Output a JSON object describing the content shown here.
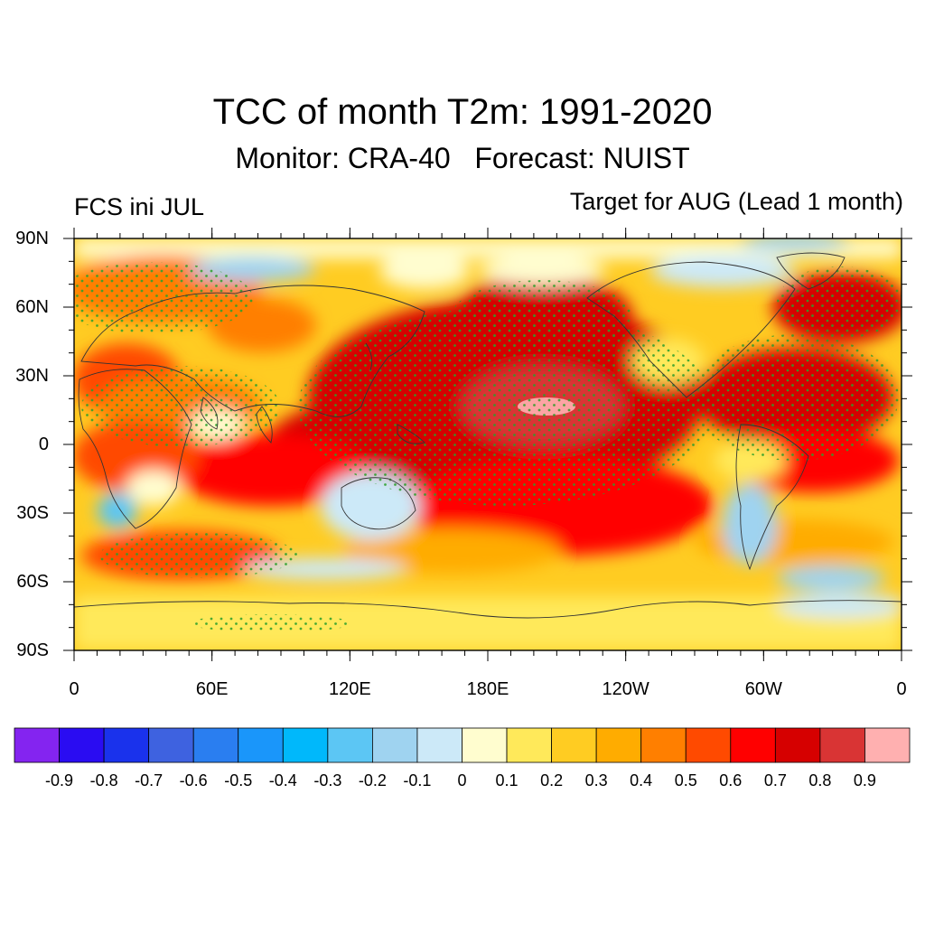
{
  "title": "TCC of month T2m: 1991-2020",
  "subtitle": "Monitor: CRA-40   Forecast: NUIST",
  "left_label": "FCS ini JUL",
  "right_label": "Target for AUG (Lead 1 month)",
  "lat_ticks": [
    "90N",
    "60N",
    "30N",
    "0",
    "30S",
    "60S",
    "90S"
  ],
  "lon_ticks": [
    "0",
    "60E",
    "120E",
    "180E",
    "120W",
    "60W",
    "0"
  ],
  "colorbar": {
    "colors": [
      "#8424f0",
      "#2a0cf2",
      "#1a32ec",
      "#3e62e0",
      "#2a7ef0",
      "#1a96fa",
      "#00b8fb",
      "#5cc6f4",
      "#9fd3f0",
      "#cce9f8",
      "#fffdcf",
      "#ffe95a",
      "#ffcc22",
      "#ffac00",
      "#ff7f00",
      "#ff4a00",
      "#ff0000",
      "#d60000",
      "#d93434",
      "#ffb0b0"
    ],
    "labels": [
      "-0.9",
      "-0.8",
      "-0.7",
      "-0.6",
      "-0.5",
      "-0.4",
      "-0.3",
      "-0.2",
      "-0.1",
      "0",
      "0.1",
      "0.2",
      "0.3",
      "0.4",
      "0.5",
      "0.6",
      "0.7",
      "0.8",
      "0.9"
    ]
  }
}
